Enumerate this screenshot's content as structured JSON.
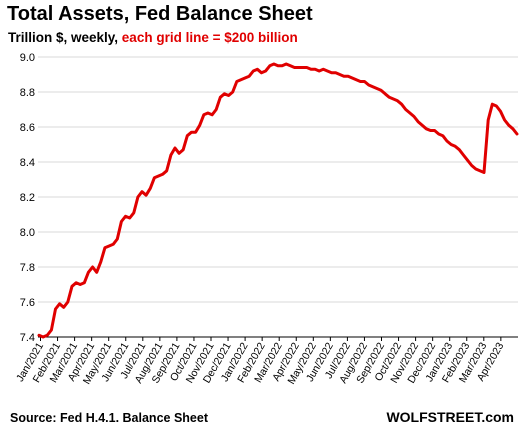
{
  "title": "Total Assets, Fed Balance Sheet",
  "subtitle": {
    "main": "Trillion $, weekly, ",
    "highlight": "each grid line = $200 billion"
  },
  "source": "Source: Fed H.4.1. Balance Sheet",
  "brand": "WOLFSTREET.com",
  "colors": {
    "line": "#e00000",
    "grid": "#d9d9d9",
    "highlight": "#e00000"
  },
  "chart_data": {
    "type": "line",
    "title": "Total Assets, Fed Balance Sheet",
    "xlabel": "",
    "ylabel": "",
    "ylim": [
      7.4,
      9.0
    ],
    "yticks": [
      7.4,
      7.6,
      7.8,
      8.0,
      8.2,
      8.4,
      8.6,
      8.8,
      9.0
    ],
    "ytick_labels": [
      "7.4",
      "7.6",
      "7.8",
      "8.0",
      "8.2",
      "8.4",
      "8.6",
      "8.8",
      "9.0"
    ],
    "x_tick_labels": [
      "Jan/2021",
      "Feb/2021",
      "Mar/2021",
      "Apr/2021",
      "May/2021",
      "Jun/2021",
      "Jul/2021",
      "Aug/2021",
      "Sep/2021",
      "Oct/2021",
      "Nov/2021",
      "Dec/2021",
      "Jan/2022",
      "Feb/2022",
      "Mar/2022",
      "Apr/2022",
      "May/2022",
      "Jun/2022",
      "Jul/2022",
      "Aug/2022",
      "Sep/2022",
      "Oct/2022",
      "Nov/2022",
      "Dec/2022",
      "Jan/2023",
      "Feb/2023",
      "Mar/2023",
      "Apr/2023"
    ],
    "grid": true,
    "series": [
      {
        "values": [
          7.41,
          7.4,
          7.41,
          7.44,
          7.56,
          7.59,
          7.57,
          7.6,
          7.69,
          7.71,
          7.7,
          7.71,
          7.77,
          7.8,
          7.77,
          7.83,
          7.91,
          7.92,
          7.93,
          7.96,
          8.06,
          8.09,
          8.08,
          8.11,
          8.2,
          8.23,
          8.21,
          8.25,
          8.31,
          8.32,
          8.33,
          8.35,
          8.44,
          8.48,
          8.45,
          8.47,
          8.55,
          8.57,
          8.57,
          8.61,
          8.67,
          8.68,
          8.67,
          8.7,
          8.77,
          8.79,
          8.78,
          8.8,
          8.86,
          8.87,
          8.88,
          8.89,
          8.92,
          8.93,
          8.91,
          8.92,
          8.95,
          8.96,
          8.95,
          8.95,
          8.96,
          8.95,
          8.94,
          8.94,
          8.94,
          8.94,
          8.93,
          8.93,
          8.92,
          8.93,
          8.92,
          8.91,
          8.91,
          8.9,
          8.89,
          8.89,
          8.88,
          8.87,
          8.86,
          8.86,
          8.84,
          8.83,
          8.82,
          8.81,
          8.79,
          8.77,
          8.76,
          8.75,
          8.73,
          8.7,
          8.68,
          8.66,
          8.63,
          8.61,
          8.59,
          8.58,
          8.58,
          8.56,
          8.55,
          8.52,
          8.5,
          8.49,
          8.47,
          8.44,
          8.41,
          8.38,
          8.36,
          8.35,
          8.34,
          8.64,
          8.73,
          8.72,
          8.69,
          8.64,
          8.61,
          8.59,
          8.56
        ]
      }
    ]
  }
}
